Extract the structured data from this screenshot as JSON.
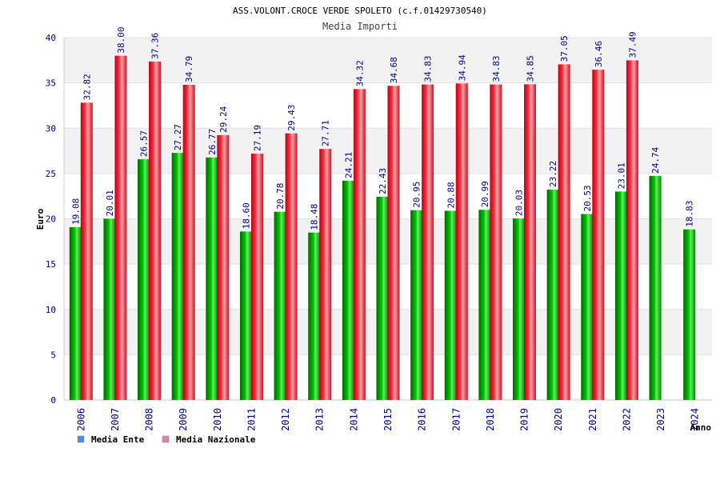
{
  "chart_data": {
    "type": "bar",
    "title": "ASS.VOLONT.CROCE VERDE SPOLETO (c.f.01429730540)",
    "subtitle": "Media Importi",
    "xlabel": "Anno",
    "ylabel": "Euro",
    "ylim": [
      0,
      40
    ],
    "yticks": [
      0,
      5,
      10,
      15,
      20,
      25,
      30,
      35,
      40
    ],
    "grid": true,
    "legend_position": "bottom-left",
    "categories": [
      "2006",
      "2007",
      "2008",
      "2009",
      "2010",
      "2011",
      "2012",
      "2013",
      "2014",
      "2015",
      "2016",
      "2017",
      "2018",
      "2019",
      "2020",
      "2021",
      "2022",
      "2023",
      "2024"
    ],
    "series": [
      {
        "name": "Media Ente",
        "legend_color": "#4a90e2",
        "bar_color": "#00b400",
        "values": [
          19.08,
          20.01,
          26.57,
          27.27,
          26.77,
          18.6,
          20.78,
          18.48,
          24.21,
          22.43,
          20.95,
          20.88,
          20.99,
          20.03,
          23.22,
          20.53,
          23.01,
          24.74,
          18.83
        ],
        "labels": [
          "19.08",
          "20.01",
          "26.57",
          "27.27",
          "26.77",
          "18.60",
          "20.78",
          "18.48",
          "24.21",
          "22.43",
          "20.95",
          "20.88",
          "20.99",
          "20.03",
          "23.22",
          "20.53",
          "23.01",
          "24.74",
          "18.83"
        ]
      },
      {
        "name": "Media Nazionale",
        "legend_color": "#e080b0",
        "bar_color": "#e8202c",
        "values": [
          32.82,
          38.0,
          37.36,
          34.79,
          29.24,
          27.19,
          29.43,
          27.71,
          34.32,
          34.68,
          34.83,
          34.94,
          34.83,
          34.85,
          37.05,
          36.46,
          37.49,
          null,
          null
        ],
        "labels": [
          "32.82",
          "38.00",
          "37.36",
          "34.79",
          "29.24",
          "27.19",
          "29.43",
          "27.71",
          "34.32",
          "34.68",
          "34.83",
          "34.94",
          "34.83",
          "34.85",
          "37.05",
          "36.46",
          "37.49",
          null,
          null
        ]
      }
    ]
  }
}
